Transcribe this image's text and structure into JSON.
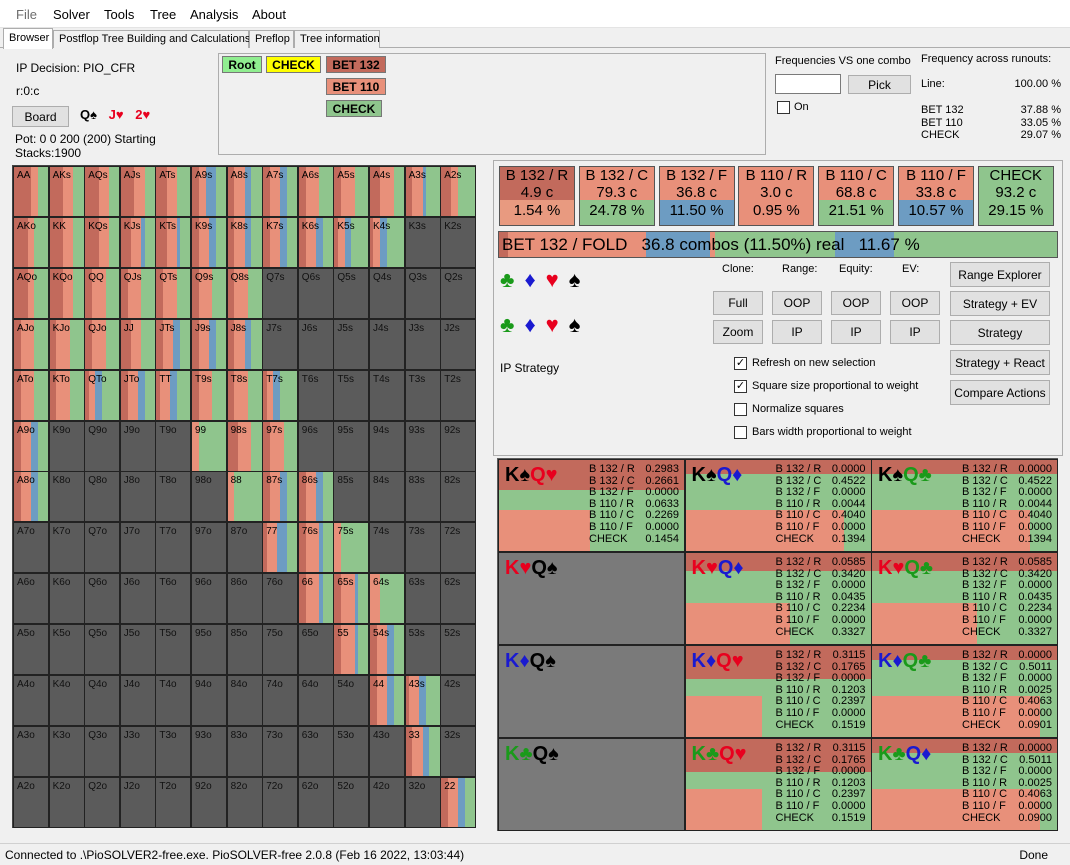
{
  "menu": {
    "file": "File",
    "solver": "Solver",
    "tools": "Tools",
    "tree": "Tree",
    "analysis": "Analysis",
    "about": "About"
  },
  "tabs": [
    "Browser",
    "Postflop Tree Building and Calculations",
    "Preflop",
    "Tree information"
  ],
  "info": {
    "decision": "IP Decision:  PIO_CFR",
    "node": "r:0:c",
    "board_button": "Board",
    "board_cards": [
      {
        "rank": "Q",
        "suit": "♠",
        "color": "spade"
      },
      {
        "rank": "J",
        "suit": "♥",
        "color": "heart"
      },
      {
        "rank": "2",
        "suit": "♥",
        "color": "heart"
      }
    ],
    "pot": "Pot: 0 0 200 (200) Starting Stacks:1900"
  },
  "tree": {
    "root": "Root",
    "check": "CHECK",
    "bet132": "BET 132",
    "bet110": "BET 110",
    "check2": "CHECK"
  },
  "freq_combo": {
    "title": "Frequencies VS one combo",
    "pick": "Pick",
    "on": "On",
    "input_value": ""
  },
  "runouts": {
    "title": "Frequency across runouts:",
    "line_label": "Line:",
    "line_value": "100.00 %",
    "rows": [
      {
        "label": "BET 132",
        "value": "37.88 %"
      },
      {
        "label": "BET 110",
        "value": "33.05 %"
      },
      {
        "label": "CHECK",
        "value": "29.07 %"
      }
    ]
  },
  "strategy_boxes": [
    {
      "name": "B 132 / R",
      "combos": "4.9 c",
      "pct": "1.54 %",
      "color": "#c26a5c",
      "pctcolor": "#e89a80"
    },
    {
      "name": "B 132 / C",
      "combos": "79.3 c",
      "pct": "24.78 %",
      "color": "#e8907a",
      "pctcolor": "#8fc58d"
    },
    {
      "name": "B 132 / F",
      "combos": "36.8 c",
      "pct": "11.50 %",
      "color": "#e8907a",
      "pctcolor": "#6d9cc2"
    },
    {
      "name": "B 110 / R",
      "combos": "3.0 c",
      "pct": "0.95 %",
      "color": "#e8907a",
      "pctcolor": "#e8907a"
    },
    {
      "name": "B 110 / C",
      "combos": "68.8 c",
      "pct": "21.51 %",
      "color": "#e8907a",
      "pctcolor": "#8fc58d"
    },
    {
      "name": "B 110 / F",
      "combos": "33.8 c",
      "pct": "10.57 %",
      "color": "#e8907a",
      "pctcolor": "#6d9cc2"
    },
    {
      "name": "CHECK",
      "combos": "93.2 c",
      "pct": "29.15 %",
      "color": "#8fc58d",
      "pctcolor": "#8fc58d"
    }
  ],
  "selected_bar": {
    "action": "BET 132 / FOLD",
    "combos": "36.8 combos (11.50%) real",
    "real": "11.67 %",
    "segments": [
      {
        "frac": 0.0154,
        "color": "#c26a5c"
      },
      {
        "frac": 0.2478,
        "color": "#e8907a"
      },
      {
        "frac": 0.115,
        "color": "#6d9cc2"
      },
      {
        "frac": 0.0095,
        "color": "#e8907a"
      },
      {
        "frac": 0.2151,
        "color": "#8fc58d"
      },
      {
        "frac": 0.1057,
        "color": "#6d9cc2"
      },
      {
        "frac": 0.2915,
        "color": "#8fc58d"
      }
    ]
  },
  "controls": {
    "clone": "Clone:",
    "range": "Range:",
    "equity": "Equity:",
    "ev": "EV:",
    "full": "Full",
    "zoom": "Zoom",
    "oop": "OOP",
    "ip": "IP",
    "range_explorer": "Range Explorer",
    "strategy_ev": "Strategy + EV",
    "strategy": "Strategy",
    "strategy_react": "Strategy + React",
    "compare": "Compare Actions",
    "ip_strategy": "IP Strategy"
  },
  "suits": [
    "♣",
    "♦",
    "♥",
    "♠"
  ],
  "checkboxes": [
    {
      "label": "Refresh on new selection",
      "checked": true
    },
    {
      "label": "Square size proportional to weight",
      "checked": true
    },
    {
      "label": "Normalize squares",
      "checked": false
    },
    {
      "label": "Bars width proportional to weight",
      "checked": false
    }
  ],
  "action_labels": [
    "B 132 / R",
    "B 132 / C",
    "B 132 / F",
    "B 110 / R",
    "B 110 / C",
    "B 110 / F",
    "CHECK"
  ],
  "combos": [
    {
      "r1": "K",
      "s1": "♠",
      "c1": "spade",
      "r2": "Q",
      "s2": "♥",
      "c2": "heart",
      "values": [
        "0.2983",
        "0.2661",
        "0.0000",
        "0.0633",
        "0.2269",
        "0.0000",
        "0.1454"
      ]
    },
    {
      "r1": "K",
      "s1": "♠",
      "c1": "spade",
      "r2": "Q",
      "s2": "♦",
      "c2": "diamond",
      "values": [
        "0.0000",
        "0.4522",
        "0.0000",
        "0.0044",
        "0.4040",
        "0.0000",
        "0.1394"
      ]
    },
    {
      "r1": "K",
      "s1": "♠",
      "c1": "spade",
      "r2": "Q",
      "s2": "♣",
      "c2": "club",
      "values": [
        "0.0000",
        "0.4522",
        "0.0000",
        "0.0044",
        "0.4040",
        "0.0000",
        "0.1394"
      ]
    },
    {
      "r1": "K",
      "s1": "♥",
      "c1": "heart",
      "r2": "Q",
      "s2": "♠",
      "c2": "spade",
      "values": null
    },
    {
      "r1": "K",
      "s1": "♥",
      "c1": "heart",
      "r2": "Q",
      "s2": "♦",
      "c2": "diamond",
      "values": [
        "0.0585",
        "0.3420",
        "0.0000",
        "0.0435",
        "0.2234",
        "0.0000",
        "0.3327"
      ]
    },
    {
      "r1": "K",
      "s1": "♥",
      "c1": "heart",
      "r2": "Q",
      "s2": "♣",
      "c2": "club",
      "values": [
        "0.0585",
        "0.3420",
        "0.0000",
        "0.0435",
        "0.2234",
        "0.0000",
        "0.3327"
      ]
    },
    {
      "r1": "K",
      "s1": "♦",
      "c1": "diamond",
      "r2": "Q",
      "s2": "♠",
      "c2": "spade",
      "values": null
    },
    {
      "r1": "K",
      "s1": "♦",
      "c1": "diamond",
      "r2": "Q",
      "s2": "♥",
      "c2": "heart",
      "values": [
        "0.3115",
        "0.1765",
        "0.0000",
        "0.1203",
        "0.2397",
        "0.0000",
        "0.1519"
      ]
    },
    {
      "r1": "K",
      "s1": "♦",
      "c1": "diamond",
      "r2": "Q",
      "s2": "♣",
      "c2": "club",
      "values": [
        "0.0000",
        "0.5011",
        "0.0000",
        "0.0025",
        "0.4063",
        "0.0000",
        "0.0901"
      ]
    },
    {
      "r1": "K",
      "s1": "♣",
      "c1": "club",
      "r2": "Q",
      "s2": "♠",
      "c2": "spade",
      "values": null
    },
    {
      "r1": "K",
      "s1": "♣",
      "c1": "club",
      "r2": "Q",
      "s2": "♥",
      "c2": "heart",
      "values": [
        "0.3115",
        "0.1765",
        "0.0000",
        "0.1203",
        "0.2397",
        "0.0000",
        "0.1519"
      ]
    },
    {
      "r1": "K",
      "s1": "♣",
      "c1": "club",
      "r2": "Q",
      "s2": "♦",
      "c2": "diamond",
      "values": [
        "0.0000",
        "0.5011",
        "0.0000",
        "0.0025",
        "0.4063",
        "0.0000",
        "0.0900"
      ]
    }
  ],
  "status": {
    "text": "Connected to .\\PioSOLVER2-free.exe. PioSOLVER-free 2.0.8 (Feb 16 2022, 13:03:44)",
    "right": "Done"
  },
  "ranks": [
    "A",
    "K",
    "Q",
    "J",
    "T",
    "9",
    "8",
    "7",
    "6",
    "5",
    "4",
    "3",
    "2"
  ],
  "colors": {
    "raise": "#c26a5c",
    "call": "#e8907a",
    "fold": "#6d9cc2",
    "check": "#8fc58d",
    "dead": "#5b5b5b"
  }
}
